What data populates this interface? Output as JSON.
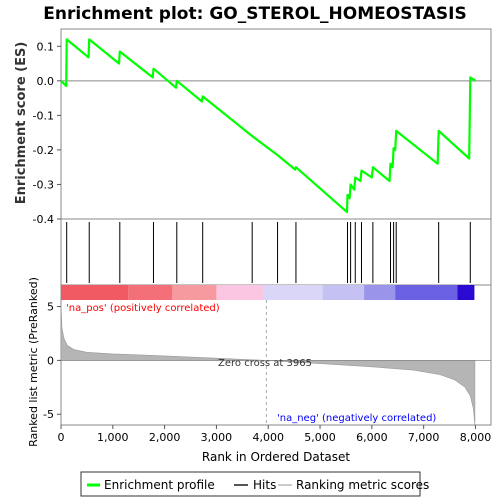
{
  "chart_data": {
    "type": "line",
    "title": "Enrichment plot: GO_STEROL_HOMEOSTASIS",
    "top_panel": {
      "ylabel": "Enrichment score (ES)",
      "ylim": [
        -0.4,
        0.15
      ],
      "yticks": [
        -0.4,
        -0.3,
        -0.2,
        -0.1,
        0.0,
        0.1
      ],
      "ytick_labels": [
        "-0.4",
        "-0.3",
        "-0.2",
        "-0.1",
        "0.0",
        "0.1"
      ],
      "series": [
        {
          "name": "Enrichment profile",
          "color": "#00ff00",
          "points": [
            [
              0,
              0.0
            ],
            [
              100,
              -0.015
            ],
            [
              110,
              0.12
            ],
            [
              530,
              0.068
            ],
            [
              545,
              0.12
            ],
            [
              1120,
              0.05
            ],
            [
              1135,
              0.085
            ],
            [
              1770,
              0.01
            ],
            [
              1785,
              0.035
            ],
            [
              2220,
              -0.02
            ],
            [
              2235,
              0.0
            ],
            [
              2720,
              -0.06
            ],
            [
              2735,
              -0.045
            ],
            [
              3690,
              -0.16
            ],
            [
              4180,
              -0.215
            ],
            [
              4520,
              -0.257
            ],
            [
              4535,
              -0.25
            ],
            [
              5520,
              -0.38
            ],
            [
              5530,
              -0.33
            ],
            [
              5570,
              -0.34
            ],
            [
              5590,
              -0.3
            ],
            [
              5660,
              -0.315
            ],
            [
              5680,
              -0.28
            ],
            [
              5780,
              -0.29
            ],
            [
              5800,
              -0.26
            ],
            [
              6000,
              -0.28
            ],
            [
              6020,
              -0.25
            ],
            [
              6340,
              -0.29
            ],
            [
              6360,
              -0.24
            ],
            [
              6400,
              -0.25
            ],
            [
              6420,
              -0.195
            ],
            [
              6450,
              -0.2
            ],
            [
              6470,
              -0.145
            ],
            [
              7270,
              -0.24
            ],
            [
              7290,
              -0.145
            ],
            [
              7880,
              -0.225
            ],
            [
              7900,
              0.01
            ],
            [
              8000,
              0.0
            ]
          ]
        }
      ]
    },
    "hits_panel": {
      "hit_ranks": [
        110,
        545,
        1135,
        1785,
        2235,
        2735,
        3690,
        4180,
        4535,
        5530,
        5590,
        5680,
        5800,
        6020,
        6360,
        6420,
        6470,
        7290,
        7900
      ]
    },
    "bottom_panel": {
      "ylabel": "Ranked list metric (PreRanked)",
      "xlabel": "Rank in Ordered Dataset",
      "ylim": [
        -6,
        7
      ],
      "yticks": [
        -5,
        0,
        5
      ],
      "ytick_labels": [
        "-5",
        "0",
        "5"
      ],
      "xlim": [
        0,
        8300
      ],
      "xticks": [
        0,
        1000,
        2000,
        3000,
        4000,
        5000,
        6000,
        7000,
        8000
      ],
      "xtick_labels": [
        "0",
        "1,000",
        "2,000",
        "3,000",
        "4,000",
        "5,000",
        "6,000",
        "7,000",
        "8,000"
      ],
      "metric_curve": [
        [
          0,
          5.2
        ],
        [
          20,
          3.0
        ],
        [
          60,
          2.0
        ],
        [
          120,
          1.4
        ],
        [
          250,
          1.0
        ],
        [
          500,
          0.75
        ],
        [
          1000,
          0.6
        ],
        [
          2000,
          0.42
        ],
        [
          3000,
          0.2
        ],
        [
          3965,
          0.0
        ],
        [
          5000,
          -0.3
        ],
        [
          6000,
          -0.6
        ],
        [
          6800,
          -0.9
        ],
        [
          7300,
          -1.3
        ],
        [
          7600,
          -1.8
        ],
        [
          7800,
          -2.5
        ],
        [
          7900,
          -3.3
        ],
        [
          7960,
          -4.5
        ],
        [
          7990,
          -6.0
        ]
      ],
      "zero_cross_rank": 3965,
      "zero_cross_label": "Zero cross at 3965",
      "pos_label": "'na_pos' (positively correlated)",
      "neg_label": "'na_neg' (negatively correlated)",
      "pos_label_color": "#ff0000",
      "neg_label_color": "#0000ff"
    },
    "color_bar_segments": [
      {
        "from": 0,
        "to": 1300,
        "color": "#f25a63"
      },
      {
        "from": 1300,
        "to": 2150,
        "color": "#f47078"
      },
      {
        "from": 2150,
        "to": 3000,
        "color": "#f79aa0"
      },
      {
        "from": 3000,
        "to": 3900,
        "color": "#fbc6e2"
      },
      {
        "from": 3900,
        "to": 5050,
        "color": "#d9d6f7"
      },
      {
        "from": 5050,
        "to": 5850,
        "color": "#c5c1f3"
      },
      {
        "from": 5850,
        "to": 6450,
        "color": "#9a95ea"
      },
      {
        "from": 6450,
        "to": 7650,
        "color": "#6a60e3"
      },
      {
        "from": 7650,
        "to": 7980,
        "color": "#2a0ad3"
      }
    ],
    "x_max": 7980
  },
  "legend": {
    "items": [
      {
        "label": "Enrichment profile",
        "color": "#00ff00"
      },
      {
        "label": "Hits",
        "color": "#555555"
      },
      {
        "label": "Ranking metric scores",
        "color": "#cccccc"
      }
    ]
  }
}
